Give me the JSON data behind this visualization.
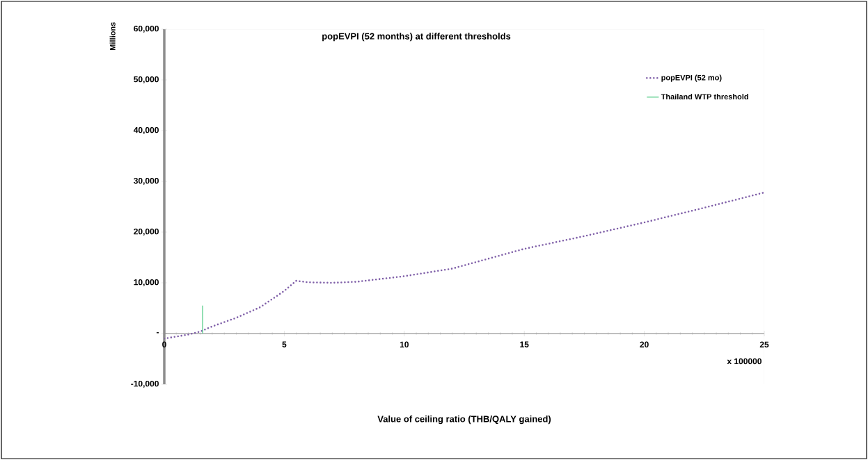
{
  "chart_data": {
    "type": "line",
    "title": "popEVPI (52 months) at different thresholds",
    "xlabel": "Value of ceiling ratio (THB/QALY gained)",
    "ylabel": "Millions",
    "annotations": [
      "x 100000"
    ],
    "series": [
      {
        "name": "popEVPI (52 mo)",
        "color": "#7f5fa8",
        "line_style": "dotted",
        "x": [
          0,
          0.5,
          1,
          1.5,
          2,
          3,
          4,
          5,
          5.5,
          6,
          7,
          8,
          10,
          12,
          15,
          17.5,
          20,
          22.5,
          25
        ],
        "values": [
          -1000,
          -600,
          -200,
          400,
          1400,
          3100,
          5200,
          8400,
          10400,
          10100,
          10000,
          10200,
          11300,
          12800,
          16700,
          19200,
          21900,
          24800,
          27800
        ]
      },
      {
        "name": "Thailand WTP threshold",
        "color": "#5fcf8f",
        "line_style": "solid",
        "x": [
          1.6,
          1.6
        ],
        "values": [
          0,
          5500
        ]
      }
    ],
    "xlim": [
      0,
      25
    ],
    "xticks": [
      0,
      5,
      10,
      15,
      20,
      25
    ],
    "ylim": [
      -10000,
      60000
    ],
    "yticks": [
      {
        "value": -10000,
        "label": "-10,000"
      },
      {
        "value": 0,
        "label": "-"
      },
      {
        "value": 10000,
        "label": "10,000"
      },
      {
        "value": 20000,
        "label": "20,000"
      },
      {
        "value": 30000,
        "label": "30,000"
      },
      {
        "value": 40000,
        "label": "40,000"
      },
      {
        "value": 50000,
        "label": "50,000"
      },
      {
        "value": 60000,
        "label": "60,000"
      }
    ],
    "grid": false,
    "legend": "top right",
    "marker": "none"
  }
}
